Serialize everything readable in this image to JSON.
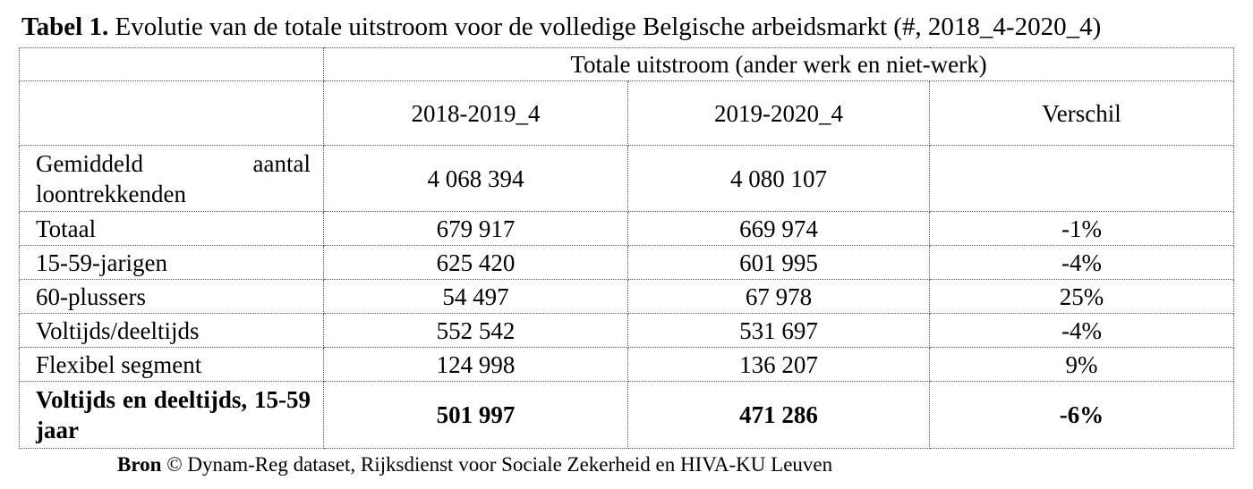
{
  "caption": {
    "label": "Tabel 1.",
    "text": "Evolutie van de totale uitstroom voor de volledige Belgische arbeidsmarkt (#, 2018_4-2020_4)"
  },
  "table": {
    "group_header": "Totale uitstroom (ander werk en niet-werk)",
    "columns": [
      "2018-2019_4",
      "2019-2020_4",
      "Verschil"
    ],
    "rows": [
      {
        "label": "Gemiddeld aantal loontrekkenden",
        "v1": "4 068 394",
        "v2": "4 080 107",
        "diff": ""
      },
      {
        "label": "Totaal",
        "v1": "679 917",
        "v2": "669 974",
        "diff": "-1%"
      },
      {
        "label": "15-59-jarigen",
        "v1": "625 420",
        "v2": "601 995",
        "diff": "-4%"
      },
      {
        "label": "60-plussers",
        "v1": "54 497",
        "v2": "67 978",
        "diff": "25%"
      },
      {
        "label": "Voltijds/deeltijds",
        "v1": "552 542",
        "v2": "531 697",
        "diff": "-4%"
      },
      {
        "label": "Flexibel segment",
        "v1": "124 998",
        "v2": "136 207",
        "diff": "9%"
      },
      {
        "label": "Voltijds en deeltijds, 15-59 jaar",
        "v1": "501 997",
        "v2": "471 286",
        "diff": "-6%"
      }
    ]
  },
  "source": {
    "label": "Bron",
    "text": "© Dynam-Reg dataset, Rijksdienst voor Sociale Zekerheid en HIVA-KU Leuven"
  }
}
